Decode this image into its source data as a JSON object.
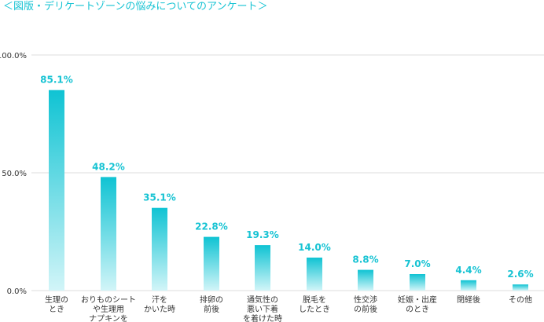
{
  "title": "＜図版・デリケートゾーンの悩みについてのアンケート＞",
  "colors": {
    "accent": "#17c3d3",
    "bar_top": "#0fc3d3",
    "bar_bottom": "#d2f5f8",
    "grid": "#dddddd",
    "axis_text": "#333333",
    "label_text": "#333333"
  },
  "chart_data": {
    "type": "bar",
    "title": "＜図版・デリケートゾーンの悩みについてのアンケート＞",
    "xlabel": "",
    "ylabel": "",
    "ylim": [
      0,
      100
    ],
    "yticks": [
      0,
      50,
      100
    ],
    "ytick_labels": [
      "0.0%",
      "50.0%",
      "100.0%"
    ],
    "grid": true,
    "categories": [
      [
        "生理の",
        "とき"
      ],
      [
        "おりものシート",
        "や生理用",
        "ナプキンを"
      ],
      [
        "汗を",
        "かいた時"
      ],
      [
        "排卵の",
        "前後"
      ],
      [
        "通気性の",
        "悪い下着",
        "を着けた時"
      ],
      [
        "脱毛を",
        "したとき"
      ],
      [
        "性交渉",
        "の前後"
      ],
      [
        "妊娠・出産",
        "のとき"
      ],
      [
        "閉経後"
      ],
      [
        "その他"
      ]
    ],
    "values": [
      85.1,
      48.2,
      35.1,
      22.8,
      19.3,
      14.0,
      8.8,
      7.0,
      4.4,
      2.6
    ],
    "value_labels": [
      "85.1%",
      "48.2%",
      "35.1%",
      "22.8%",
      "19.3%",
      "14.0%",
      "8.8%",
      "7.0%",
      "4.4%",
      "2.6%"
    ]
  }
}
